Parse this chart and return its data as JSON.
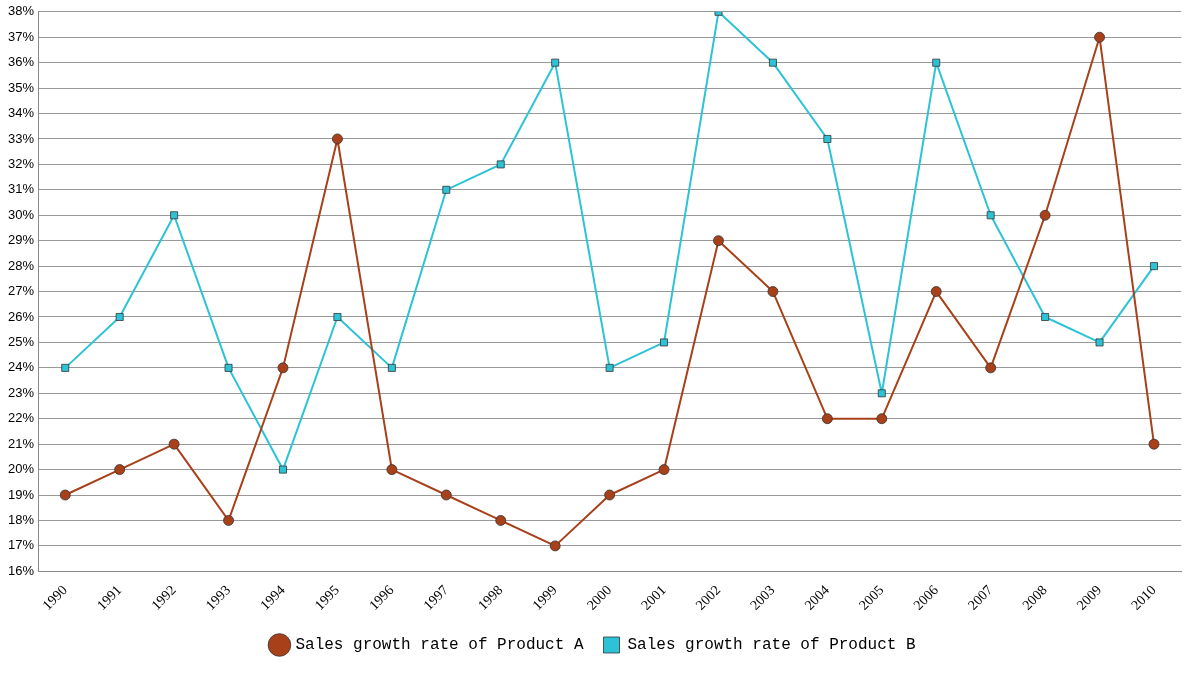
{
  "chart_data": {
    "type": "line",
    "categories": [
      "1990",
      "1991",
      "1992",
      "1993",
      "1994",
      "1995",
      "1996",
      "1997",
      "1998",
      "1999",
      "2000",
      "2001",
      "2002",
      "2003",
      "2004",
      "2005",
      "2006",
      "2007",
      "2008",
      "2009",
      "2010"
    ],
    "series": [
      {
        "name": "Sales growth rate of Product A",
        "color": "#a8401a",
        "marker": "circle",
        "values": [
          19,
          20,
          21,
          18,
          24,
          33,
          20,
          19,
          18,
          17,
          19,
          20,
          29,
          27,
          22,
          22,
          27,
          24,
          30,
          37,
          21
        ]
      },
      {
        "name": "Sales growth rate of Product B",
        "color": "#2cc3d6",
        "marker": "square",
        "values": [
          24,
          26,
          30,
          24,
          20,
          26,
          24,
          31,
          32,
          36,
          24,
          25,
          38,
          36,
          33,
          23,
          36,
          30,
          26,
          25,
          28
        ]
      }
    ],
    "ylim": [
      16,
      38
    ],
    "yticks": [
      {
        "value": 16,
        "label": "16%"
      },
      {
        "value": 17,
        "label": "17%"
      },
      {
        "value": 18,
        "label": "18%"
      },
      {
        "value": 19,
        "label": "19%"
      },
      {
        "value": 20,
        "label": "20%"
      },
      {
        "value": 21,
        "label": "21%"
      },
      {
        "value": 22,
        "label": "22%"
      },
      {
        "value": 23,
        "label": "23%"
      },
      {
        "value": 24,
        "label": "24%"
      },
      {
        "value": 25,
        "label": "25%"
      },
      {
        "value": 26,
        "label": "26%"
      },
      {
        "value": 27,
        "label": "27%"
      },
      {
        "value": 28,
        "label": "28%"
      },
      {
        "value": 29,
        "label": "29%"
      },
      {
        "value": 30,
        "label": "30%"
      },
      {
        "value": 31,
        "label": "31%"
      },
      {
        "value": 32,
        "label": "32%"
      },
      {
        "value": 33,
        "label": "33%"
      },
      {
        "value": 34,
        "label": "34%"
      },
      {
        "value": 35,
        "label": "35%"
      },
      {
        "value": 36,
        "label": "36%"
      },
      {
        "value": 37,
        "label": "37%"
      },
      {
        "value": 38,
        "label": "38%"
      }
    ],
    "grid": "y",
    "legend": "bottom",
    "line_style": "solid"
  }
}
